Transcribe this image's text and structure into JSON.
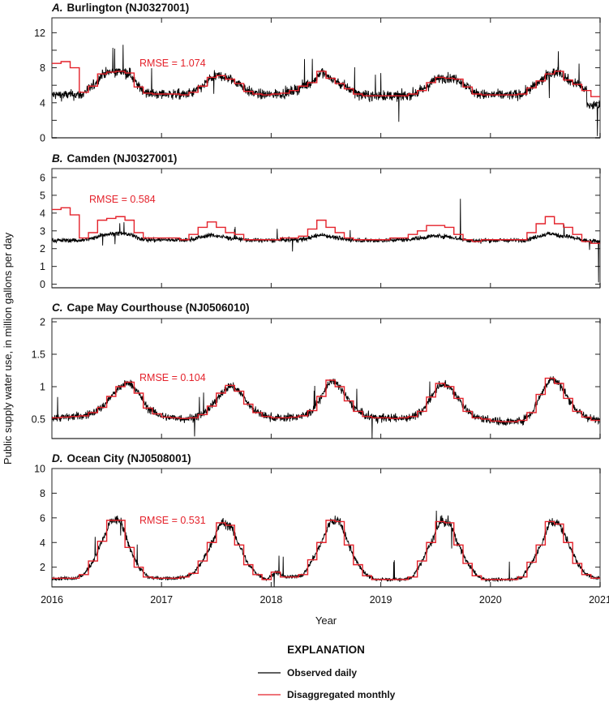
{
  "chart_data": {
    "type": "line",
    "ylabel": "Public supply water use, in million gallons per day",
    "xlabel": "Year",
    "x_ticks": [
      "2016",
      "2017",
      "2018",
      "2019",
      "2020",
      "2021"
    ],
    "xlim": [
      2016,
      2021
    ],
    "legend": {
      "title": "EXPLANATION",
      "placement": "bottom-center",
      "entries": [
        {
          "label": "Observed daily",
          "color": "#000000"
        },
        {
          "label": "Disaggregated monthly",
          "color": "#e4222b"
        }
      ]
    },
    "panels": [
      {
        "letter": "A.",
        "title": "Burlington (NJ0327001)",
        "rmse": "RMSE = 1.074",
        "ylim": [
          0,
          13.7
        ],
        "y_major": [
          0,
          4,
          8,
          12
        ],
        "y_minor": [
          2,
          6,
          10
        ],
        "noise": 0.55,
        "monthly": [
          8.5,
          8.7,
          8.0,
          5.2,
          5.9,
          7.3,
          7.5,
          7.6,
          7.4,
          5.8,
          5.1,
          5.0,
          5.0,
          5.0,
          4.9,
          5.2,
          5.9,
          6.9,
          7.1,
          6.7,
          6.2,
          5.3,
          5.0,
          4.9,
          5.0,
          5.1,
          5.4,
          5.9,
          6.3,
          7.6,
          6.8,
          6.2,
          5.6,
          5.0,
          4.8,
          4.8,
          4.8,
          4.8,
          4.8,
          5.0,
          5.4,
          6.3,
          6.9,
          6.8,
          6.7,
          5.8,
          5.0,
          4.9,
          4.9,
          4.9,
          4.9,
          5.0,
          5.7,
          6.5,
          7.3,
          7.6,
          6.6,
          6.1,
          5.4,
          4.7
        ]
      },
      {
        "letter": "B.",
        "title": "Camden (NJ0327001)",
        "rmse": "RMSE = 0.584",
        "ylim": [
          -0.2,
          6.5
        ],
        "y_major": [
          0,
          1,
          2,
          3,
          4,
          5,
          6
        ],
        "y_minor": [],
        "noise": 0.12,
        "monthly": [
          4.2,
          4.3,
          3.9,
          2.6,
          2.9,
          3.6,
          3.7,
          3.8,
          3.6,
          2.9,
          2.6,
          2.6,
          2.6,
          2.6,
          2.5,
          2.8,
          3.2,
          3.5,
          3.2,
          2.9,
          2.8,
          2.5,
          2.5,
          2.5,
          2.5,
          2.6,
          2.6,
          2.7,
          3.1,
          3.6,
          3.2,
          2.9,
          2.6,
          2.5,
          2.5,
          2.5,
          2.5,
          2.6,
          2.6,
          2.8,
          3.0,
          3.3,
          3.3,
          3.2,
          2.8,
          2.5,
          2.4,
          2.5,
          2.5,
          2.5,
          2.5,
          2.5,
          2.9,
          3.4,
          3.8,
          3.4,
          3.2,
          2.8,
          2.4,
          2.3
        ]
      },
      {
        "letter": "C.",
        "title": "Cape May Courthouse (NJ0506010)",
        "rmse": "RMSE = 0.104",
        "ylim": [
          0.2,
          2.05
        ],
        "y_major": [
          0.5,
          1,
          1.5,
          2
        ],
        "y_minor": [],
        "noise": 0.06,
        "monthly": [
          0.52,
          0.53,
          0.54,
          0.55,
          0.6,
          0.68,
          0.85,
          1.0,
          1.07,
          0.9,
          0.67,
          0.58,
          0.53,
          0.52,
          0.51,
          0.52,
          0.57,
          0.7,
          0.9,
          1.02,
          0.93,
          0.73,
          0.6,
          0.54,
          0.52,
          0.52,
          0.53,
          0.55,
          0.63,
          0.85,
          1.1,
          1.0,
          0.78,
          0.62,
          0.54,
          0.52,
          0.52,
          0.51,
          0.52,
          0.54,
          0.62,
          0.84,
          1.05,
          1.0,
          0.82,
          0.62,
          0.52,
          0.5,
          0.47,
          0.46,
          0.46,
          0.48,
          0.6,
          0.88,
          1.13,
          1.05,
          0.82,
          0.62,
          0.53,
          0.48
        ]
      },
      {
        "letter": "D.",
        "title": "Ocean City (NJ0508001)",
        "rmse": "RMSE = 0.531",
        "ylim": [
          0.4,
          10
        ],
        "y_major": [
          2,
          4,
          6,
          8,
          10
        ],
        "y_minor": [],
        "noise": 0.3,
        "monthly": [
          1.1,
          1.1,
          1.1,
          1.4,
          2.5,
          4.1,
          5.8,
          5.8,
          3.6,
          2.0,
          1.2,
          1.1,
          1.1,
          1.1,
          1.2,
          1.5,
          2.5,
          4.0,
          5.6,
          5.4,
          3.8,
          2.2,
          1.4,
          1.0,
          1.6,
          1.2,
          1.2,
          1.4,
          2.6,
          4.0,
          5.8,
          5.7,
          3.8,
          2.2,
          1.3,
          1.0,
          1.0,
          1.0,
          1.0,
          1.2,
          2.5,
          4.0,
          5.7,
          5.6,
          3.8,
          2.3,
          1.3,
          1.0,
          1.0,
          1.0,
          1.0,
          1.2,
          2.4,
          3.8,
          5.7,
          5.5,
          4.0,
          2.3,
          1.4,
          1.1
        ]
      }
    ]
  }
}
